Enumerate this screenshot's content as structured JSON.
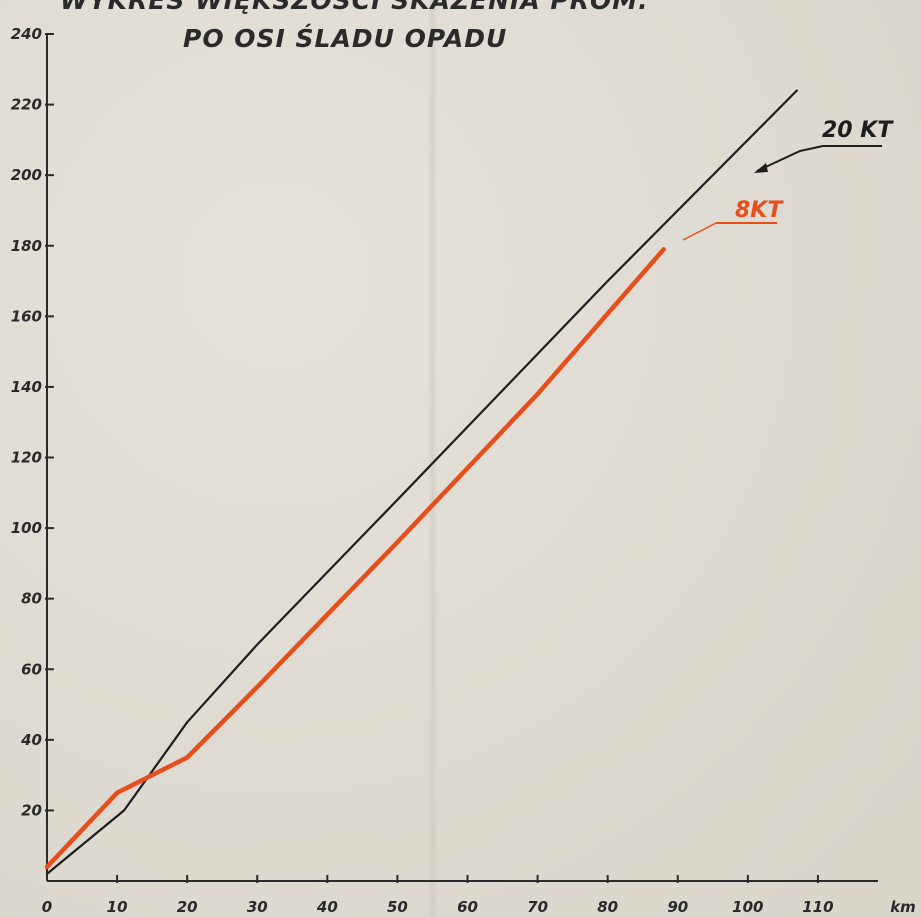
{
  "chart_data": {
    "type": "line",
    "title": "WYKRES WIĘKSZOŚCI SKAŻENIA PROM.",
    "subtitle": "PO OSI ŚLADU OPADU",
    "xlabel": "km",
    "ylabel": "",
    "xlim": [
      0,
      120
    ],
    "ylim": [
      0,
      240
    ],
    "x_ticks": [
      0,
      10,
      20,
      30,
      40,
      50,
      60,
      70,
      80,
      90,
      100,
      110
    ],
    "y_ticks": [
      20,
      40,
      60,
      80,
      100,
      120,
      140,
      160,
      180,
      200,
      220,
      240
    ],
    "y_tick_labels": [
      "20",
      "40",
      "60",
      "80",
      "100",
      "120",
      "140",
      "160",
      "180",
      "200",
      "220",
      "240"
    ],
    "grid": false,
    "series": [
      {
        "name": "20 KT",
        "color": "#1e1e1e",
        "points": [
          [
            0,
            2
          ],
          [
            11,
            20
          ],
          [
            20,
            45
          ],
          [
            30,
            67
          ],
          [
            50,
            108
          ],
          [
            80,
            170
          ],
          [
            107,
            224
          ]
        ]
      },
      {
        "name": "8KT",
        "color": "#e84d1c",
        "points": [
          [
            0,
            4
          ],
          [
            10,
            25
          ],
          [
            16,
            31
          ],
          [
            20,
            35
          ],
          [
            30,
            55
          ],
          [
            50,
            96
          ],
          [
            70,
            138
          ],
          [
            88,
            179
          ]
        ]
      }
    ]
  }
}
